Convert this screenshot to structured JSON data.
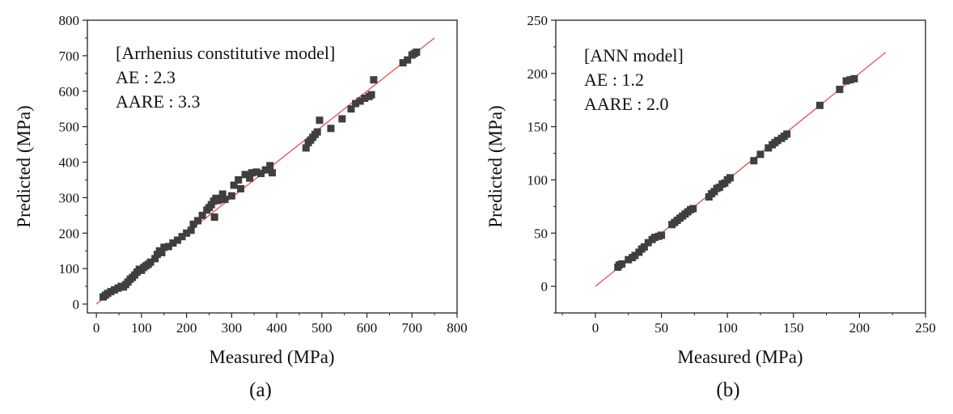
{
  "colors": {
    "marker": "#3f3f3f",
    "fit_line": "#e8595b",
    "axis": "#222222"
  },
  "chart_data": [
    {
      "type": "scatter",
      "panel_label": "(a)",
      "xlabel": "Measured (MPa)",
      "ylabel": "Predicted (MPa)",
      "xlim": [
        -20,
        800
      ],
      "ylim": [
        -25,
        800
      ],
      "xticks": [
        "0",
        "100",
        "200",
        "300",
        "400",
        "500",
        "600",
        "700",
        "800"
      ],
      "yticks": [
        "0",
        "100",
        "200",
        "300",
        "400",
        "500",
        "600",
        "700",
        "800"
      ],
      "annotation": {
        "title": "[Arrhenius constitutive model]",
        "ae": "AE :  2.3",
        "aare": "AARE : 3.3"
      },
      "fit_line": {
        "x": [
          0,
          750
        ],
        "y": [
          0,
          750
        ]
      },
      "series": [
        {
          "name": "Arrhenius constitutive model",
          "points": [
            [
              15,
              20
            ],
            [
              20,
              25
            ],
            [
              25,
              30
            ],
            [
              32,
              35
            ],
            [
              40,
              40
            ],
            [
              48,
              45
            ],
            [
              55,
              50
            ],
            [
              60,
              48
            ],
            [
              65,
              55
            ],
            [
              70,
              62
            ],
            [
              75,
              70
            ],
            [
              80,
              75
            ],
            [
              85,
              82
            ],
            [
              90,
              90
            ],
            [
              95,
              98
            ],
            [
              100,
              95
            ],
            [
              105,
              103
            ],
            [
              110,
              108
            ],
            [
              115,
              112
            ],
            [
              120,
              118
            ],
            [
              130,
              128
            ],
            [
              135,
              140
            ],
            [
              140,
              150
            ],
            [
              145,
              145
            ],
            [
              150,
              160
            ],
            [
              160,
              162
            ],
            [
              170,
              172
            ],
            [
              180,
              180
            ],
            [
              190,
              190
            ],
            [
              200,
              200
            ],
            [
              210,
              208
            ],
            [
              215,
              225
            ],
            [
              225,
              235
            ],
            [
              235,
              250
            ],
            [
              245,
              265
            ],
            [
              250,
              272
            ],
            [
              255,
              280
            ],
            [
              260,
              290
            ],
            [
              262,
              245
            ],
            [
              265,
              298
            ],
            [
              270,
              292
            ],
            [
              280,
              310
            ],
            [
              285,
              295
            ],
            [
              300,
              305
            ],
            [
              305,
              335
            ],
            [
              315,
              350
            ],
            [
              320,
              325
            ],
            [
              330,
              365
            ],
            [
              340,
              355
            ],
            [
              345,
              370
            ],
            [
              355,
              372
            ],
            [
              365,
              368
            ],
            [
              375,
              378
            ],
            [
              385,
              390
            ],
            [
              390,
              370
            ],
            [
              465,
              440
            ],
            [
              470,
              455
            ],
            [
              475,
              462
            ],
            [
              480,
              470
            ],
            [
              485,
              478
            ],
            [
              490,
              485
            ],
            [
              495,
              518
            ],
            [
              520,
              495
            ],
            [
              545,
              522
            ],
            [
              565,
              550
            ],
            [
              575,
              565
            ],
            [
              585,
              572
            ],
            [
              595,
              580
            ],
            [
              605,
              585
            ],
            [
              610,
              590
            ],
            [
              615,
              632
            ],
            [
              680,
              680
            ],
            [
              690,
              688
            ],
            [
              700,
              702
            ],
            [
              705,
              706
            ],
            [
              710,
              710
            ]
          ]
        }
      ]
    },
    {
      "type": "scatter",
      "panel_label": "(b)",
      "xlabel": "Measured (MPa)",
      "ylabel": "Predicted (MPa)",
      "xlim": [
        -30,
        250
      ],
      "ylim": [
        -25,
        250
      ],
      "xticks": [
        "0",
        "50",
        "100",
        "150",
        "200",
        "250"
      ],
      "yticks": [
        "0",
        "50",
        "100",
        "150",
        "200",
        "250"
      ],
      "annotation": {
        "title": "[ANN model]",
        "ae": "AE : 1.2",
        "aare": "AARE : 2.0"
      },
      "fit_line": {
        "x": [
          0,
          220
        ],
        "y": [
          0,
          220
        ]
      },
      "series": [
        {
          "name": "ANN model",
          "points": [
            [
              17,
              18
            ],
            [
              18,
              20
            ],
            [
              20,
              21
            ],
            [
              25,
              25
            ],
            [
              28,
              27
            ],
            [
              30,
              29
            ],
            [
              33,
              32
            ],
            [
              35,
              35
            ],
            [
              37,
              37
            ],
            [
              40,
              41
            ],
            [
              43,
              44
            ],
            [
              45,
              46
            ],
            [
              48,
              47
            ],
            [
              50,
              48
            ],
            [
              58,
              58
            ],
            [
              60,
              60
            ],
            [
              62,
              62
            ],
            [
              64,
              64
            ],
            [
              66,
              66
            ],
            [
              68,
              68
            ],
            [
              70,
              70
            ],
            [
              72,
              72
            ],
            [
              74,
              73
            ],
            [
              86,
              84
            ],
            [
              88,
              87
            ],
            [
              90,
              89
            ],
            [
              92,
              92
            ],
            [
              94,
              93
            ],
            [
              96,
              96
            ],
            [
              98,
              97
            ],
            [
              100,
              100
            ],
            [
              102,
              102
            ],
            [
              120,
              118
            ],
            [
              125,
              124
            ],
            [
              131,
              130
            ],
            [
              134,
              133
            ],
            [
              136,
              135
            ],
            [
              138,
              137
            ],
            [
              141,
              139
            ],
            [
              143,
              141
            ],
            [
              145,
              143
            ],
            [
              170,
              170
            ],
            [
              185,
              185
            ],
            [
              190,
              193
            ],
            [
              193,
              194
            ],
            [
              196,
              195
            ]
          ]
        }
      ]
    }
  ]
}
